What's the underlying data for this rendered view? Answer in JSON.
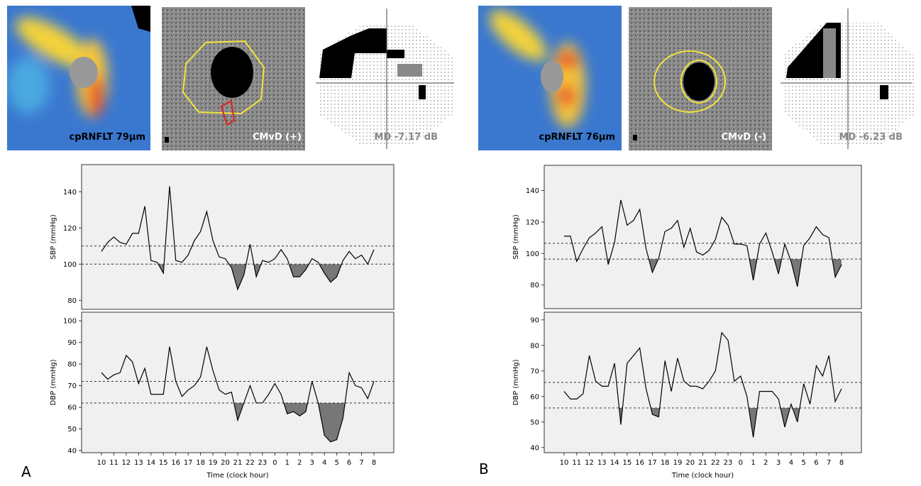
{
  "panels": [
    {
      "label": "A",
      "rnfl": "cpRNFLT 79μm",
      "cmvd": "CMvD (+)",
      "md": "MD -7.17 dB"
    },
    {
      "label": "B",
      "rnfl": "cpRNFLT 76μm",
      "cmvd": "CMvD (-)",
      "md": "MD -6.23 dB"
    }
  ],
  "chart_data": [
    {
      "type": "line",
      "ylabel": "SBP (mmHg)",
      "color": "#000000",
      "shade_color": "#777777",
      "ylim": [
        75,
        155
      ],
      "yticks": [
        80,
        100,
        120,
        140
      ],
      "reference_lines": [
        110,
        100
      ],
      "values": [
        107,
        112,
        115,
        112,
        111,
        117,
        117,
        132,
        102,
        101,
        95,
        143,
        102,
        101,
        105,
        113,
        118,
        129,
        113,
        104,
        103,
        98,
        86,
        94,
        111,
        93,
        102,
        101,
        103,
        108,
        103,
        93,
        93,
        97,
        103,
        101,
        95,
        90,
        93,
        102,
        107,
        103,
        105,
        100,
        108
      ]
    },
    {
      "type": "line",
      "ylabel": "DBP (mmHg)",
      "xlabel": "Time (clock hour)",
      "color": "#000000",
      "shade_color": "#777777",
      "ylim": [
        39,
        104
      ],
      "yticks": [
        40,
        50,
        60,
        70,
        80,
        90,
        100
      ],
      "reference_lines": [
        72,
        62
      ],
      "categories": [
        "10",
        null,
        "11",
        null,
        "12",
        null,
        "13",
        null,
        "14",
        null,
        "15",
        null,
        "16",
        null,
        "17",
        null,
        "18",
        null,
        "19",
        null,
        "20",
        null,
        "21",
        null,
        "22",
        null,
        "23",
        null,
        "0",
        null,
        "1",
        null,
        "2",
        null,
        "3",
        null,
        "4",
        null,
        "5",
        null,
        "6",
        null,
        "7",
        null,
        "8"
      ],
      "values": [
        76,
        73,
        75,
        76,
        84,
        81,
        71,
        78,
        66,
        66,
        66,
        88,
        72,
        65,
        68,
        70,
        74,
        88,
        77,
        68,
        66,
        67,
        54,
        62,
        70,
        62,
        62,
        66,
        71,
        66,
        57,
        58,
        56,
        58,
        72,
        62,
        47,
        44,
        45,
        55,
        76,
        70,
        69,
        64,
        72
      ]
    },
    {
      "type": "line",
      "ylabel": "SBP (mmHg)",
      "color": "#000000",
      "shade_color": "#777777",
      "ylim": [
        65,
        156
      ],
      "yticks": [
        80,
        100,
        120,
        140
      ],
      "reference_lines": [
        106.5,
        96.5
      ],
      "values": [
        111,
        111,
        95,
        103,
        110,
        113,
        117,
        93,
        107,
        134,
        118,
        121,
        128,
        103,
        88,
        97,
        114,
        116,
        121,
        104,
        116,
        101,
        99,
        102,
        109,
        123,
        118,
        106,
        106,
        105,
        83,
        106,
        113,
        101,
        87,
        106,
        95,
        79,
        105,
        110,
        117,
        112,
        110,
        85,
        93
      ]
    },
    {
      "type": "line",
      "ylabel": "DBP (mmHg)",
      "xlabel": "Time (clock hour)",
      "color": "#000000",
      "shade_color": "#777777",
      "ylim": [
        38,
        93
      ],
      "yticks": [
        40,
        50,
        60,
        70,
        80,
        90
      ],
      "reference_lines": [
        65.5,
        55.5
      ],
      "categories": [
        "10",
        null,
        "11",
        null,
        "12",
        null,
        "13",
        null,
        "14",
        null,
        "15",
        null,
        "16",
        null,
        "17",
        null,
        "18",
        null,
        "19",
        null,
        "20",
        null,
        "21",
        null,
        "22",
        null,
        "23",
        null,
        "0",
        null,
        "1",
        null,
        "2",
        null,
        "3",
        null,
        "4",
        null,
        "5",
        null,
        "6",
        null,
        "7",
        null,
        "8"
      ],
      "values": [
        62,
        59,
        59,
        61,
        76,
        66,
        64,
        64,
        73,
        49,
        73,
        76,
        79,
        63,
        53,
        52,
        74,
        62,
        75,
        66,
        64,
        64,
        63,
        66,
        70,
        85,
        82,
        66,
        68,
        60,
        44,
        62,
        62,
        62,
        59,
        48,
        57,
        50,
        65,
        57,
        72,
        68,
        76,
        58,
        63
      ]
    }
  ]
}
